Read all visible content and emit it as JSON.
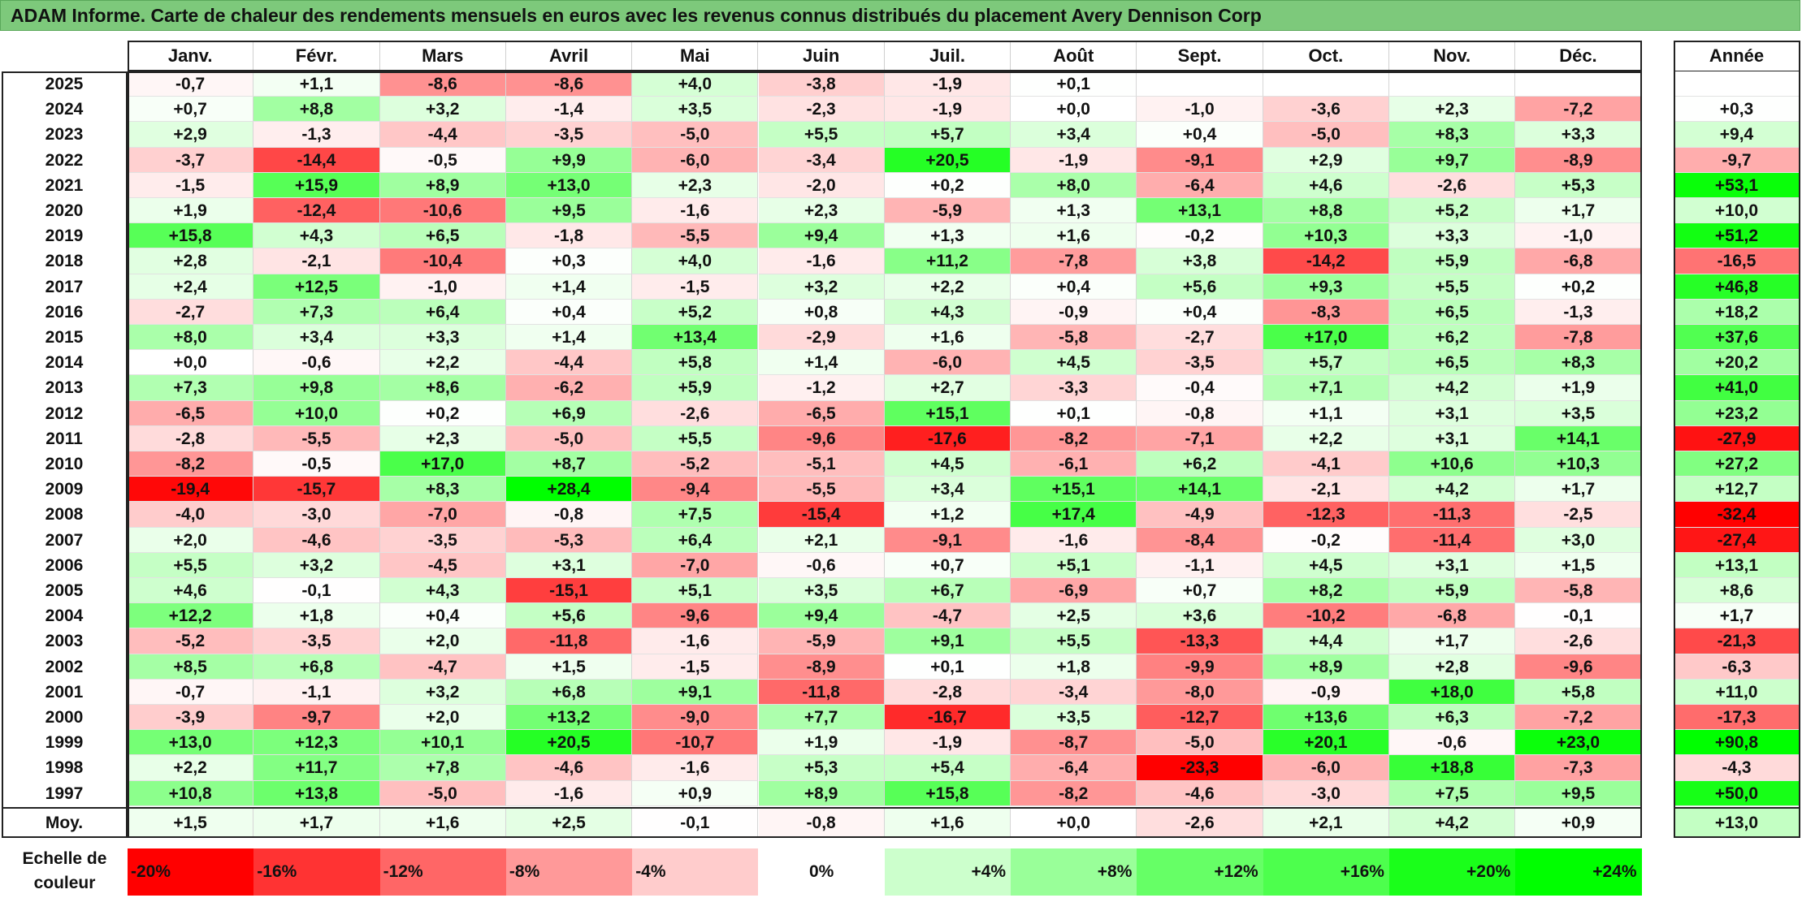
{
  "title": "ADAM Informe. Carte de chaleur des rendements mensuels en euros avec les revenus connus distribués du placement Avery Dennison Corp",
  "chart_data": {
    "type": "heatmap",
    "title": "ADAM Informe. Carte de chaleur des rendements mensuels en euros avec les revenus connus distribués du placement Avery Dennison Corp",
    "columns": [
      "Janv.",
      "Févr.",
      "Mars",
      "Avril",
      "Mai",
      "Juin",
      "Juil.",
      "Août",
      "Sept.",
      "Oct.",
      "Nov.",
      "Déc."
    ],
    "annual_label": "Année",
    "rows": [
      {
        "year": "2025",
        "values": [
          "-0,7",
          "+1,1",
          "-8,6",
          "-8,6",
          "+4,0",
          "-3,8",
          "-1,9",
          "+0,1",
          "",
          "",
          "",
          ""
        ],
        "annual": ""
      },
      {
        "year": "2024",
        "values": [
          "+0,7",
          "+8,8",
          "+3,2",
          "-1,4",
          "+3,5",
          "-2,3",
          "-1,9",
          "+0,0",
          "-1,0",
          "-3,6",
          "+2,3",
          "-7,2"
        ],
        "annual": "+0,3"
      },
      {
        "year": "2023",
        "values": [
          "+2,9",
          "-1,3",
          "-4,4",
          "-3,5",
          "-5,0",
          "+5,5",
          "+5,7",
          "+3,4",
          "+0,4",
          "-5,0",
          "+8,3",
          "+3,3"
        ],
        "annual": "+9,4"
      },
      {
        "year": "2022",
        "values": [
          "-3,7",
          "-14,4",
          "-0,5",
          "+9,9",
          "-6,0",
          "-3,4",
          "+20,5",
          "-1,9",
          "-9,1",
          "+2,9",
          "+9,7",
          "-8,9"
        ],
        "annual": "-9,7"
      },
      {
        "year": "2021",
        "values": [
          "-1,5",
          "+15,9",
          "+8,9",
          "+13,0",
          "+2,3",
          "-2,0",
          "+0,2",
          "+8,0",
          "-6,4",
          "+4,6",
          "-2,6",
          "+5,3"
        ],
        "annual": "+53,1"
      },
      {
        "year": "2020",
        "values": [
          "+1,9",
          "-12,4",
          "-10,6",
          "+9,5",
          "-1,6",
          "+2,3",
          "-5,9",
          "+1,3",
          "+13,1",
          "+8,8",
          "+5,2",
          "+1,7"
        ],
        "annual": "+10,0"
      },
      {
        "year": "2019",
        "values": [
          "+15,8",
          "+4,3",
          "+6,5",
          "-1,8",
          "-5,5",
          "+9,4",
          "+1,3",
          "+1,6",
          "-0,2",
          "+10,3",
          "+3,3",
          "-1,0"
        ],
        "annual": "+51,2"
      },
      {
        "year": "2018",
        "values": [
          "+2,8",
          "-2,1",
          "-10,4",
          "+0,3",
          "+4,0",
          "-1,6",
          "+11,2",
          "-7,8",
          "+3,8",
          "-14,2",
          "+5,9",
          "-6,8"
        ],
        "annual": "-16,5"
      },
      {
        "year": "2017",
        "values": [
          "+2,4",
          "+12,5",
          "-1,0",
          "+1,4",
          "-1,5",
          "+3,2",
          "+2,2",
          "+0,4",
          "+5,6",
          "+9,3",
          "+5,5",
          "+0,2"
        ],
        "annual": "+46,8"
      },
      {
        "year": "2016",
        "values": [
          "-2,7",
          "+7,3",
          "+6,4",
          "+0,4",
          "+5,2",
          "+0,8",
          "+4,3",
          "-0,9",
          "+0,4",
          "-8,3",
          "+6,5",
          "-1,3"
        ],
        "annual": "+18,2"
      },
      {
        "year": "2015",
        "values": [
          "+8,0",
          "+3,4",
          "+3,3",
          "+1,4",
          "+13,4",
          "-2,9",
          "+1,6",
          "-5,8",
          "-2,7",
          "+17,0",
          "+6,2",
          "-7,8"
        ],
        "annual": "+37,6"
      },
      {
        "year": "2014",
        "values": [
          "+0,0",
          "-0,6",
          "+2,2",
          "-4,4",
          "+5,8",
          "+1,4",
          "-6,0",
          "+4,5",
          "-3,5",
          "+5,7",
          "+6,5",
          "+8,3"
        ],
        "annual": "+20,2"
      },
      {
        "year": "2013",
        "values": [
          "+7,3",
          "+9,8",
          "+8,6",
          "-6,2",
          "+5,9",
          "-1,2",
          "+2,7",
          "-3,3",
          "-0,4",
          "+7,1",
          "+4,2",
          "+1,9"
        ],
        "annual": "+41,0"
      },
      {
        "year": "2012",
        "values": [
          "-6,5",
          "+10,0",
          "+0,2",
          "+6,9",
          "-2,6",
          "-6,5",
          "+15,1",
          "+0,1",
          "-0,8",
          "+1,1",
          "+3,1",
          "+3,5"
        ],
        "annual": "+23,2"
      },
      {
        "year": "2011",
        "values": [
          "-2,8",
          "-5,5",
          "+2,3",
          "-5,0",
          "+5,5",
          "-9,6",
          "-17,6",
          "-8,2",
          "-7,1",
          "+2,2",
          "+3,1",
          "+14,1"
        ],
        "annual": "-27,9"
      },
      {
        "year": "2010",
        "values": [
          "-8,2",
          "-0,5",
          "+17,0",
          "+8,7",
          "-5,2",
          "-5,1",
          "+4,5",
          "-6,1",
          "+6,2",
          "-4,1",
          "+10,6",
          "+10,3"
        ],
        "annual": "+27,2"
      },
      {
        "year": "2009",
        "values": [
          "-19,4",
          "-15,7",
          "+8,3",
          "+28,4",
          "-9,4",
          "-5,5",
          "+3,4",
          "+15,1",
          "+14,1",
          "-2,1",
          "+4,2",
          "+1,7"
        ],
        "annual": "+12,7"
      },
      {
        "year": "2008",
        "values": [
          "-4,0",
          "-3,0",
          "-7,0",
          "-0,8",
          "+7,5",
          "-15,4",
          "+1,2",
          "+17,4",
          "-4,9",
          "-12,3",
          "-11,3",
          "-2,5"
        ],
        "annual": "-32,4"
      },
      {
        "year": "2007",
        "values": [
          "+2,0",
          "-4,6",
          "-3,5",
          "-5,3",
          "+6,4",
          "+2,1",
          "-9,1",
          "-1,6",
          "-8,4",
          "-0,2",
          "-11,4",
          "+3,0"
        ],
        "annual": "-27,4"
      },
      {
        "year": "2006",
        "values": [
          "+5,5",
          "+3,2",
          "-4,5",
          "+3,1",
          "-7,0",
          "-0,6",
          "+0,7",
          "+5,1",
          "-1,1",
          "+4,5",
          "+3,1",
          "+1,5"
        ],
        "annual": "+13,1"
      },
      {
        "year": "2005",
        "values": [
          "+4,6",
          "-0,1",
          "+4,3",
          "-15,1",
          "+5,1",
          "+3,5",
          "+6,7",
          "-6,9",
          "+0,7",
          "+8,2",
          "+5,9",
          "-5,8"
        ],
        "annual": "+8,6"
      },
      {
        "year": "2004",
        "values": [
          "+12,2",
          "+1,8",
          "+0,4",
          "+5,6",
          "-9,6",
          "+9,4",
          "-4,7",
          "+2,5",
          "+3,6",
          "-10,2",
          "-6,8",
          "-0,1"
        ],
        "annual": "+1,7"
      },
      {
        "year": "2003",
        "values": [
          "-5,2",
          "-3,5",
          "+2,0",
          "-11,8",
          "-1,6",
          "-5,9",
          "+9,1",
          "+5,5",
          "-13,3",
          "+4,4",
          "+1,7",
          "-2,6"
        ],
        "annual": "-21,3"
      },
      {
        "year": "2002",
        "values": [
          "+8,5",
          "+6,8",
          "-4,7",
          "+1,5",
          "-1,5",
          "-8,9",
          "+0,1",
          "+1,8",
          "-9,9",
          "+8,9",
          "+2,8",
          "-9,6"
        ],
        "annual": "-6,3"
      },
      {
        "year": "2001",
        "values": [
          "-0,7",
          "-1,1",
          "+3,2",
          "+6,8",
          "+9,1",
          "-11,8",
          "-2,8",
          "-3,4",
          "-8,0",
          "-0,9",
          "+18,0",
          "+5,8"
        ],
        "annual": "+11,0"
      },
      {
        "year": "2000",
        "values": [
          "-3,9",
          "-9,7",
          "+2,0",
          "+13,2",
          "-9,0",
          "+7,7",
          "-16,7",
          "+3,5",
          "-12,7",
          "+13,6",
          "+6,3",
          "-7,2"
        ],
        "annual": "-17,3"
      },
      {
        "year": "1999",
        "values": [
          "+13,0",
          "+12,3",
          "+10,1",
          "+20,5",
          "-10,7",
          "+1,9",
          "-1,9",
          "-8,7",
          "-5,0",
          "+20,1",
          "-0,6",
          "+23,0"
        ],
        "annual": "+90,8"
      },
      {
        "year": "1998",
        "values": [
          "+2,2",
          "+11,7",
          "+7,8",
          "-4,6",
          "-1,6",
          "+5,3",
          "+5,4",
          "-6,4",
          "-23,3",
          "-6,0",
          "+18,8",
          "-7,3"
        ],
        "annual": "-4,3"
      },
      {
        "year": "1997",
        "values": [
          "+10,8",
          "+13,8",
          "-5,0",
          "-1,6",
          "+0,9",
          "+8,9",
          "+15,8",
          "-8,2",
          "-4,6",
          "-3,0",
          "+7,5",
          "+9,5"
        ],
        "annual": "+50,0"
      }
    ],
    "average": {
      "label": "Moy.",
      "values": [
        "+1,5",
        "+1,7",
        "+1,6",
        "+2,5",
        "-0,1",
        "-0,8",
        "+1,6",
        "+0,0",
        "-2,6",
        "+2,1",
        "+4,2",
        "+0,9"
      ],
      "annual": "+13,0"
    },
    "color_scale": {
      "label_line1": "Echelle de",
      "label_line2": "couleur",
      "stops": [
        {
          "label": "-20%",
          "value": -20,
          "color": "#ff0000"
        },
        {
          "label": "-16%",
          "value": -16,
          "color": "#ff3333"
        },
        {
          "label": "-12%",
          "value": -12,
          "color": "#ff6666"
        },
        {
          "label": "-8%",
          "value": -8,
          "color": "#ff9999"
        },
        {
          "label": "-4%",
          "value": -4,
          "color": "#ffcccc"
        },
        {
          "label": "0%",
          "value": 0,
          "color": "#ffffff"
        },
        {
          "label": "+4%",
          "value": 4,
          "color": "#ccffcc"
        },
        {
          "label": "+8%",
          "value": 8,
          "color": "#99ff99"
        },
        {
          "label": "+12%",
          "value": 12,
          "color": "#66ff66"
        },
        {
          "label": "+16%",
          "value": 16,
          "color": "#4dff4d"
        },
        {
          "label": "+20%",
          "value": 20,
          "color": "#1aff1a"
        },
        {
          "label": "+24%",
          "value": 24,
          "color": "#00ff00"
        }
      ]
    },
    "annual_color_range": [
      -30,
      55
    ]
  }
}
